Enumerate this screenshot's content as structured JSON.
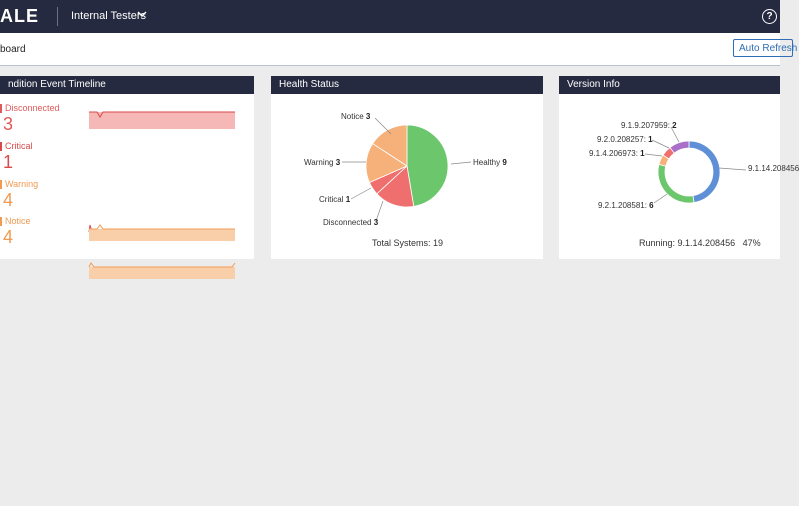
{
  "topbar": {
    "logo": "ALE",
    "org_name": "Internal Testers",
    "help_glyph": "?"
  },
  "subbar": {
    "breadcrumb": "board",
    "auto_refresh": "Auto Refresh"
  },
  "timeline": {
    "title": "ndition Event Timeline",
    "rows": [
      {
        "label": "Disconnected",
        "count": "3",
        "color": "#e05a5a",
        "fill": "#f4a3a3"
      },
      {
        "label": "Critical",
        "count": "1",
        "color": "#d84b4b",
        "fill": "#f4a3a3"
      },
      {
        "label": "Warning",
        "count": "4",
        "color": "#ef9b54",
        "fill": "#f7c9a0"
      },
      {
        "label": "Notice",
        "count": "4",
        "color": "#ef9b54",
        "fill": "#f7c9a0"
      }
    ]
  },
  "health": {
    "title": "Health Status",
    "labels": {
      "notice": {
        "name": "Notice",
        "value": "3"
      },
      "warning": {
        "name": "Warning",
        "value": "3"
      },
      "critical": {
        "name": "Critical",
        "value": "1"
      },
      "disconnected": {
        "name": "Disconnected",
        "value": "3"
      },
      "healthy": {
        "name": "Healthy",
        "value": "9"
      }
    },
    "total": "Total Systems: 19"
  },
  "version": {
    "title": "Version Info",
    "labels": {
      "v1": {
        "name": "9.1.9.207959",
        "value": "2"
      },
      "v2": {
        "name": "9.2.0.208257",
        "value": "1"
      },
      "v3": {
        "name": "9.1.4.206973",
        "value": "1"
      },
      "v4": {
        "name": "9.1.14.208456",
        "value": ""
      },
      "v5": {
        "name": "9.2.1.208581",
        "value": "6"
      }
    },
    "running": "Running: 9.1.14.208456",
    "percent": "47%"
  },
  "chart_data": [
    {
      "type": "pie",
      "title": "Health Status",
      "categories": [
        "Healthy",
        "Disconnected",
        "Critical",
        "Warning",
        "Notice"
      ],
      "values": [
        9,
        3,
        1,
        3,
        3
      ],
      "colors": [
        "#6cc66c",
        "#ef6f6f",
        "#ef6f6f",
        "#f6b07a",
        "#f6b07a"
      ]
    },
    {
      "type": "pie",
      "title": "Version Info",
      "categories": [
        "9.1.14.208456",
        "9.2.1.208581",
        "9.1.4.206973",
        "9.2.0.208257",
        "9.1.9.207959"
      ],
      "values": [
        9,
        6,
        1,
        1,
        2
      ],
      "colors": [
        "#5f8fd6",
        "#6cc66c",
        "#f6b07a",
        "#ef6f6f",
        "#a96fc9"
      ]
    }
  ]
}
